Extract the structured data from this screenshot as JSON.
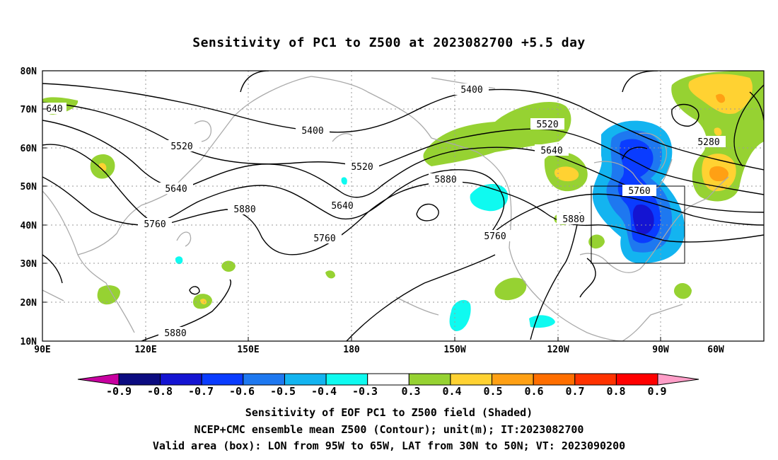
{
  "title": "Sensitivity of PC1 to Z500 at 2023082700 +5.5 day",
  "lat_labels": [
    "80N",
    "70N",
    "60N",
    "50N",
    "40N",
    "30N",
    "20N",
    "10N"
  ],
  "lon_labels": [
    "90E",
    "120E",
    "150E",
    "180",
    "150W",
    "120W",
    "90W",
    "60W"
  ],
  "contour_labels": {
    "c5400a": "5400",
    "c5400b": "5400",
    "c5520a": "5520",
    "c5520b": "5520",
    "c5520c": "5520",
    "c5640a": "5640",
    "c5640b": "5640",
    "c5640c": "5640",
    "c5760a": "5760",
    "c5760b": "5760",
    "c5760c": "5760",
    "c5760d": "5760",
    "c5880a": "5880",
    "c5880b": "5880",
    "c5880c": "5880",
    "c5880d": "5880",
    "c5280": "5280",
    "c640": "640"
  },
  "colorbar": {
    "labels": [
      "-0.9",
      "-0.8",
      "-0.7",
      "-0.6",
      "-0.5",
      "-0.4",
      "-0.3",
      "0.3",
      "0.4",
      "0.5",
      "0.6",
      "0.7",
      "0.8",
      "0.9"
    ],
    "colors": [
      "#0b0b80",
      "#1414d2",
      "#0a3cff",
      "#1e78f0",
      "#13b4f0",
      "#0ffaf0",
      "#ffffff",
      "#96d232",
      "#ffd232",
      "#ffa014",
      "#ff6e00",
      "#ff3200",
      "#ff0000"
    ],
    "low_end_color": "#c800a0",
    "high_end_color": "#ff9ec8"
  },
  "captions": {
    "line1": "Sensitivity of EOF PC1 to Z500 field (Shaded)",
    "line2": "NCEP+CMC ensemble mean Z500 (Contour); unit(m); IT:2023082700",
    "line3": "Valid area (box): LON from 95W to 65W, LAT from 30N to 50N; VT: 2023090200"
  }
}
